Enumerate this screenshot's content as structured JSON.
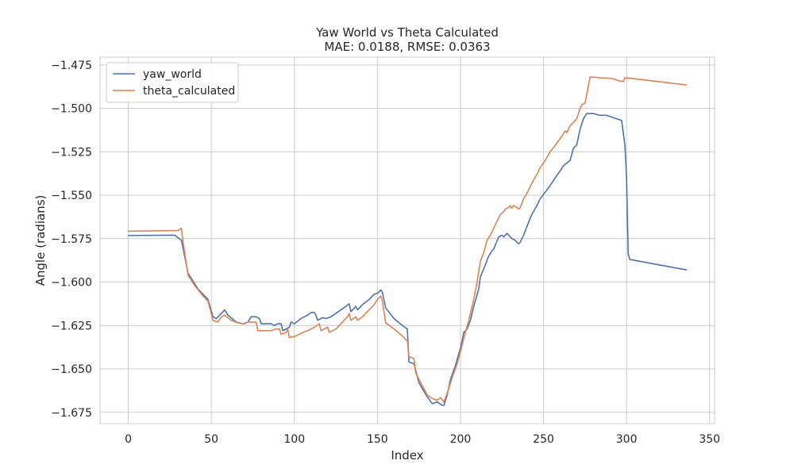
{
  "chart_data": {
    "type": "line",
    "title": "Yaw World vs Theta Calculated",
    "subtitle": "MAE: 0.0188, RMSE: 0.0363",
    "xlabel": "Index",
    "ylabel": "Angle (radians)",
    "xlim": [
      -17,
      353
    ],
    "ylim": [
      -1.6815,
      -1.4705
    ],
    "xticks": [
      0,
      50,
      100,
      150,
      200,
      250,
      300,
      350
    ],
    "yticks": [
      -1.675,
      -1.65,
      -1.625,
      -1.6,
      -1.575,
      -1.55,
      -1.525,
      -1.5,
      -1.475
    ],
    "xtick_labels": [
      "0",
      "50",
      "100",
      "150",
      "200",
      "250",
      "300",
      "350"
    ],
    "ytick_labels": [
      "−1.675",
      "−1.650",
      "−1.625",
      "−1.600",
      "−1.575",
      "−1.550",
      "−1.525",
      "−1.500",
      "−1.475"
    ],
    "grid": true,
    "legend_position": "top-left",
    "series": [
      {
        "name": "yaw_world",
        "color": "#4c72b0",
        "points": [
          [
            0,
            -1.5732
          ],
          [
            28,
            -1.573
          ],
          [
            32,
            -1.576
          ],
          [
            36,
            -1.595
          ],
          [
            42,
            -1.604
          ],
          [
            48,
            -1.61
          ],
          [
            51,
            -1.62
          ],
          [
            53,
            -1.621
          ],
          [
            57,
            -1.617
          ],
          [
            58,
            -1.616
          ],
          [
            60,
            -1.619
          ],
          [
            65,
            -1.623
          ],
          [
            69,
            -1.624
          ],
          [
            72,
            -1.623
          ],
          [
            74,
            -1.62
          ],
          [
            77,
            -1.62
          ],
          [
            79,
            -1.621
          ],
          [
            80,
            -1.624
          ],
          [
            86,
            -1.624
          ],
          [
            88,
            -1.625
          ],
          [
            90,
            -1.624
          ],
          [
            92,
            -1.624
          ],
          [
            93,
            -1.628
          ],
          [
            97,
            -1.626
          ],
          [
            98,
            -1.623
          ],
          [
            100,
            -1.624
          ],
          [
            104,
            -1.621
          ],
          [
            108,
            -1.619
          ],
          [
            110,
            -1.6175
          ],
          [
            112,
            -1.6175
          ],
          [
            113,
            -1.619
          ],
          [
            114,
            -1.622
          ],
          [
            117,
            -1.6205
          ],
          [
            119,
            -1.621
          ],
          [
            122,
            -1.62
          ],
          [
            125,
            -1.618
          ],
          [
            128,
            -1.616
          ],
          [
            131,
            -1.614
          ],
          [
            133,
            -1.6125
          ],
          [
            134,
            -1.617
          ],
          [
            137,
            -1.614
          ],
          [
            138,
            -1.616
          ],
          [
            141,
            -1.613
          ],
          [
            145,
            -1.61
          ],
          [
            148,
            -1.607
          ],
          [
            150,
            -1.6065
          ],
          [
            152,
            -1.6045
          ],
          [
            153,
            -1.606
          ],
          [
            155,
            -1.615
          ],
          [
            160,
            -1.621
          ],
          [
            165,
            -1.625
          ],
          [
            168,
            -1.627
          ],
          [
            169,
            -1.646
          ],
          [
            172,
            -1.647
          ],
          [
            175,
            -1.658
          ],
          [
            180,
            -1.666
          ],
          [
            183,
            -1.67
          ],
          [
            186,
            -1.669
          ],
          [
            189,
            -1.671
          ],
          [
            190,
            -1.671
          ],
          [
            192,
            -1.665
          ],
          [
            194,
            -1.656
          ],
          [
            197,
            -1.648
          ],
          [
            200,
            -1.638
          ],
          [
            202,
            -1.629
          ],
          [
            204,
            -1.627
          ],
          [
            206,
            -1.622
          ],
          [
            208,
            -1.614
          ],
          [
            211,
            -1.604
          ],
          [
            212,
            -1.597
          ],
          [
            215,
            -1.59
          ],
          [
            217,
            -1.585
          ],
          [
            219,
            -1.582
          ],
          [
            220,
            -1.581
          ],
          [
            223,
            -1.574
          ],
          [
            225,
            -1.573
          ],
          [
            226,
            -1.574
          ],
          [
            228,
            -1.572
          ],
          [
            231,
            -1.575
          ],
          [
            233,
            -1.576
          ],
          [
            235,
            -1.578
          ],
          [
            236,
            -1.577
          ],
          [
            238,
            -1.573
          ],
          [
            240,
            -1.568
          ],
          [
            243,
            -1.561
          ],
          [
            246,
            -1.556
          ],
          [
            248,
            -1.552
          ],
          [
            252,
            -1.547
          ],
          [
            255,
            -1.543
          ],
          [
            257,
            -1.54
          ],
          [
            260,
            -1.536
          ],
          [
            262,
            -1.533
          ],
          [
            266,
            -1.53
          ],
          [
            268,
            -1.523
          ],
          [
            270,
            -1.521
          ],
          [
            272,
            -1.512
          ],
          [
            274,
            -1.506
          ],
          [
            276,
            -1.503
          ],
          [
            280,
            -1.503
          ],
          [
            284,
            -1.504
          ],
          [
            288,
            -1.504
          ],
          [
            291,
            -1.505
          ],
          [
            294,
            -1.506
          ],
          [
            297,
            -1.507
          ],
          [
            299,
            -1.521
          ],
          [
            300,
            -1.54
          ],
          [
            301,
            -1.584
          ],
          [
            302,
            -1.587
          ],
          [
            336,
            -1.593
          ]
        ]
      },
      {
        "name": "theta_calculated",
        "color": "#dd8452",
        "points": [
          [
            0,
            -1.5707
          ],
          [
            30,
            -1.5703
          ],
          [
            32,
            -1.569
          ],
          [
            33,
            -1.577
          ],
          [
            36,
            -1.596
          ],
          [
            40,
            -1.602
          ],
          [
            45,
            -1.608
          ],
          [
            48,
            -1.611
          ],
          [
            51,
            -1.622
          ],
          [
            54,
            -1.623
          ],
          [
            56,
            -1.62
          ],
          [
            58,
            -1.619
          ],
          [
            62,
            -1.622
          ],
          [
            66,
            -1.6235
          ],
          [
            70,
            -1.624
          ],
          [
            72,
            -1.623
          ],
          [
            75,
            -1.623
          ],
          [
            77,
            -1.623
          ],
          [
            78,
            -1.628
          ],
          [
            82,
            -1.628
          ],
          [
            86,
            -1.628
          ],
          [
            89,
            -1.627
          ],
          [
            91,
            -1.627
          ],
          [
            92,
            -1.63
          ],
          [
            95,
            -1.629
          ],
          [
            96,
            -1.627
          ],
          [
            97,
            -1.632
          ],
          [
            101,
            -1.631
          ],
          [
            105,
            -1.629
          ],
          [
            108,
            -1.628
          ],
          [
            112,
            -1.626
          ],
          [
            115,
            -1.624
          ],
          [
            116,
            -1.628
          ],
          [
            118,
            -1.627
          ],
          [
            120,
            -1.626
          ],
          [
            121,
            -1.629
          ],
          [
            125,
            -1.627
          ],
          [
            128,
            -1.624
          ],
          [
            130,
            -1.622
          ],
          [
            132,
            -1.62
          ],
          [
            133,
            -1.618
          ],
          [
            134,
            -1.622
          ],
          [
            137,
            -1.62
          ],
          [
            138,
            -1.622
          ],
          [
            141,
            -1.62
          ],
          [
            145,
            -1.616
          ],
          [
            148,
            -1.613
          ],
          [
            150,
            -1.61
          ],
          [
            152,
            -1.608
          ],
          [
            153,
            -1.611
          ],
          [
            155,
            -1.6235
          ],
          [
            160,
            -1.627
          ],
          [
            165,
            -1.631
          ],
          [
            168,
            -1.634
          ],
          [
            169,
            -1.643
          ],
          [
            172,
            -1.644
          ],
          [
            173,
            -1.652
          ],
          [
            175,
            -1.656
          ],
          [
            180,
            -1.665
          ],
          [
            183,
            -1.667
          ],
          [
            186,
            -1.668
          ],
          [
            188,
            -1.6665
          ],
          [
            190,
            -1.669
          ],
          [
            192,
            -1.664
          ],
          [
            195,
            -1.655
          ],
          [
            198,
            -1.647
          ],
          [
            200,
            -1.64
          ],
          [
            203,
            -1.629
          ],
          [
            205,
            -1.622
          ],
          [
            208,
            -1.61
          ],
          [
            210,
            -1.6
          ],
          [
            211,
            -1.594
          ],
          [
            212,
            -1.588
          ],
          [
            214,
            -1.583
          ],
          [
            216,
            -1.576
          ],
          [
            218,
            -1.573
          ],
          [
            220,
            -1.569
          ],
          [
            222,
            -1.565
          ],
          [
            224,
            -1.561
          ],
          [
            226,
            -1.5595
          ],
          [
            227,
            -1.558
          ],
          [
            229,
            -1.557
          ],
          [
            230,
            -1.556
          ],
          [
            231,
            -1.5575
          ],
          [
            232,
            -1.556
          ],
          [
            234,
            -1.557
          ],
          [
            235,
            -1.558
          ],
          [
            236,
            -1.557
          ],
          [
            238,
            -1.552
          ],
          [
            240,
            -1.549
          ],
          [
            243,
            -1.543
          ],
          [
            246,
            -1.538
          ],
          [
            248,
            -1.534
          ],
          [
            251,
            -1.53
          ],
          [
            254,
            -1.525
          ],
          [
            258,
            -1.52
          ],
          [
            261,
            -1.516
          ],
          [
            263,
            -1.513
          ],
          [
            264,
            -1.514
          ],
          [
            266,
            -1.51
          ],
          [
            268,
            -1.508
          ],
          [
            270,
            -1.506
          ],
          [
            272,
            -1.5
          ],
          [
            273,
            -1.498
          ],
          [
            275,
            -1.497
          ],
          [
            278,
            -1.482
          ],
          [
            281,
            -1.482
          ],
          [
            285,
            -1.4825
          ],
          [
            288,
            -1.4825
          ],
          [
            292,
            -1.483
          ],
          [
            295,
            -1.484
          ],
          [
            298,
            -1.4845
          ],
          [
            299,
            -1.4825
          ],
          [
            301,
            -1.4825
          ],
          [
            336,
            -1.4865
          ]
        ]
      }
    ]
  }
}
